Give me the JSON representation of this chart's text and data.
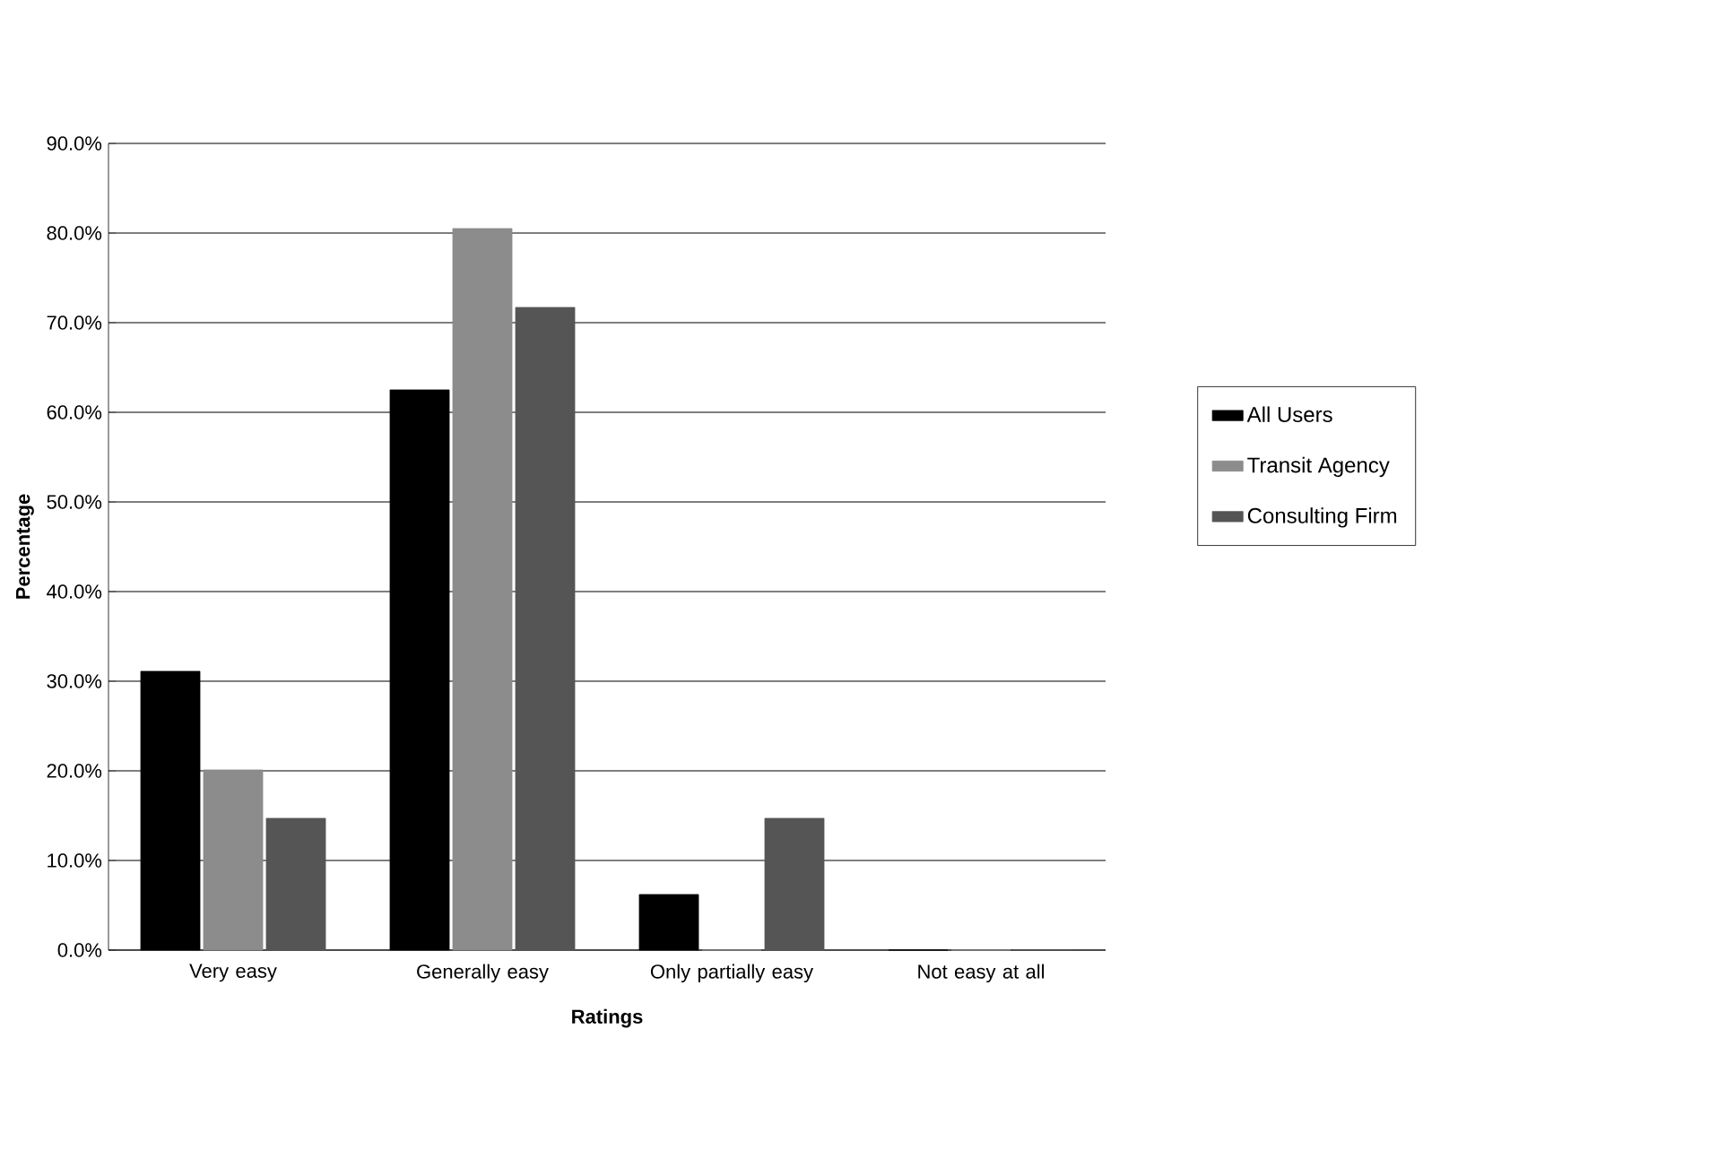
{
  "chart_data": {
    "type": "bar",
    "xlabel": "Ratings",
    "ylabel": "Percentage",
    "categories": [
      "Very easy",
      "Generally easy",
      "Only partially easy",
      "Not easy at all"
    ],
    "series": [
      {
        "name": "All Users",
        "color": "#000000",
        "values": [
          31.1,
          62.5,
          6.2,
          0
        ]
      },
      {
        "name": "Transit Agency",
        "color": "#8c8c8c",
        "values": [
          20.1,
          80.5,
          0,
          0
        ]
      },
      {
        "name": "Consulting Firm",
        "color": "#555555",
        "values": [
          14.7,
          71.7,
          14.7,
          0
        ]
      }
    ],
    "ylim": [
      0,
      90
    ],
    "yticks": [
      {
        "value": 0,
        "label": "0.0%"
      },
      {
        "value": 10,
        "label": "10.0%"
      },
      {
        "value": 20,
        "label": "20.0%"
      },
      {
        "value": 30,
        "label": "30.0%"
      },
      {
        "value": 40,
        "label": "40.0%"
      },
      {
        "value": 50,
        "label": "50.0%"
      },
      {
        "value": 60,
        "label": "60.0%"
      },
      {
        "value": 70,
        "label": "70.0%"
      },
      {
        "value": 80,
        "label": "80.0%"
      },
      {
        "value": 90,
        "label": "90.0%"
      }
    ],
    "grid": "y",
    "legend": "right"
  }
}
